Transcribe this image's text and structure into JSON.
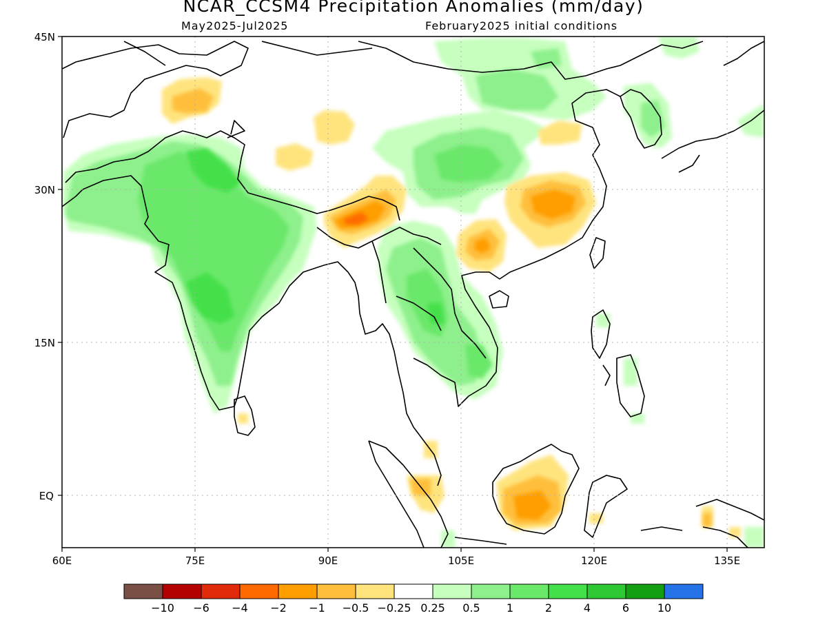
{
  "title": "NCAR_CCSM4 Precipitation Anomalies (mm/day)",
  "subtitle_left": "May2025-Jul2025",
  "subtitle_right": "February2025 initial conditions",
  "lat_labels": [
    "45N",
    "30N",
    "15N",
    "EQ"
  ],
  "lon_labels": [
    "60E",
    "75E",
    "90E",
    "105E",
    "120E",
    "135E"
  ],
  "colorbar": {
    "colors": [
      "#7a4f46",
      "#b30000",
      "#e02a0a",
      "#ff6a00",
      "#ff9e00",
      "#ffbf3c",
      "#ffe47e",
      "#ffffff",
      "#c6ffbe",
      "#8ef08c",
      "#6ae86a",
      "#44e04a",
      "#2ec835",
      "#12a012",
      "#2672e8"
    ],
    "labels": [
      "-10",
      "-6",
      "-4",
      "-2",
      "-1",
      "-0.5",
      "-0.25",
      "0.25",
      "0.5",
      "1",
      "2",
      "4",
      "6",
      "10"
    ]
  },
  "map": {
    "type": "map",
    "lon_range": [
      60,
      142
    ],
    "lat_range": [
      -6,
      45
    ],
    "grid_lons": [
      75,
      90,
      105,
      120,
      135
    ],
    "grid_lats": [
      30,
      15,
      0
    ]
  }
}
